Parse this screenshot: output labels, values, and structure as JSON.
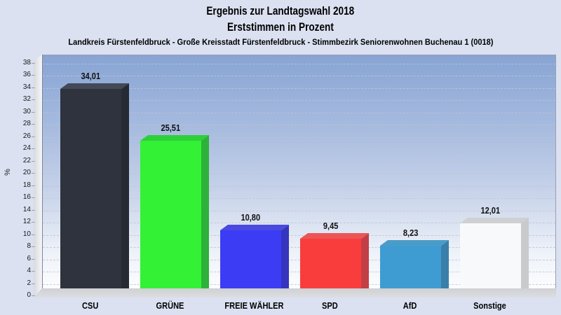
{
  "title": {
    "line1": "Ergebnis zur Landtagswahl 2018",
    "line2": "Erststimmen in Prozent"
  },
  "subtitle": "Landkreis Fürstenfeldbruck - Große Kreisstadt Fürstenfeldbruck - Stimmbezirk Seniorenwohnen Buchenau 1 (0018)",
  "chart_data": {
    "type": "bar",
    "title": "Ergebnis zur Landtagswahl 2018 — Erststimmen in Prozent",
    "categories": [
      "CSU",
      "GRÜNE",
      "FREIE WÄHLER",
      "SPD",
      "AfD",
      "Sonstige"
    ],
    "values": [
      34.01,
      25.51,
      10.8,
      9.45,
      8.23,
      12.01
    ],
    "value_labels": [
      "34,01",
      "25,51",
      "10,80",
      "9,45",
      "8,23",
      "12,01"
    ],
    "ylabel": "%",
    "xlabel": "",
    "ylim": [
      0,
      38
    ],
    "ytick_step": 2,
    "grid": true,
    "legend": false,
    "style": "3d-bars",
    "bar_colors": [
      {
        "party": "CSU",
        "front": "#2e333d",
        "top": "#434a56",
        "side": "#262a33"
      },
      {
        "party": "GRÜNE",
        "front": "#33f135",
        "top": "#2dd039",
        "side": "#2cb23a"
      },
      {
        "party": "FREIE WÄHLER",
        "front": "#3c3cf5",
        "top": "#4a4ae0",
        "side": "#3535bd"
      },
      {
        "party": "SPD",
        "front": "#f93d3d",
        "top": "#ec5555",
        "side": "#c24045"
      },
      {
        "party": "AfD",
        "front": "#3f9cd3",
        "top": "#4a9cc8",
        "side": "#3a7fa9"
      },
      {
        "party": "Sonstige",
        "front": "#f7f9fb",
        "top": "#cfd0d2",
        "side": "#c9cacc"
      }
    ]
  },
  "colors": {
    "page_background": "#dbe1f1",
    "plot_gradient_top": "#87a4d4",
    "plot_gradient_bottom": "#ffffff",
    "plot_border": "#98a0b0",
    "wall": "#e6e7eb",
    "floor": "#d4d5d9",
    "gridline": "#bec4d2",
    "text": "#000000"
  }
}
